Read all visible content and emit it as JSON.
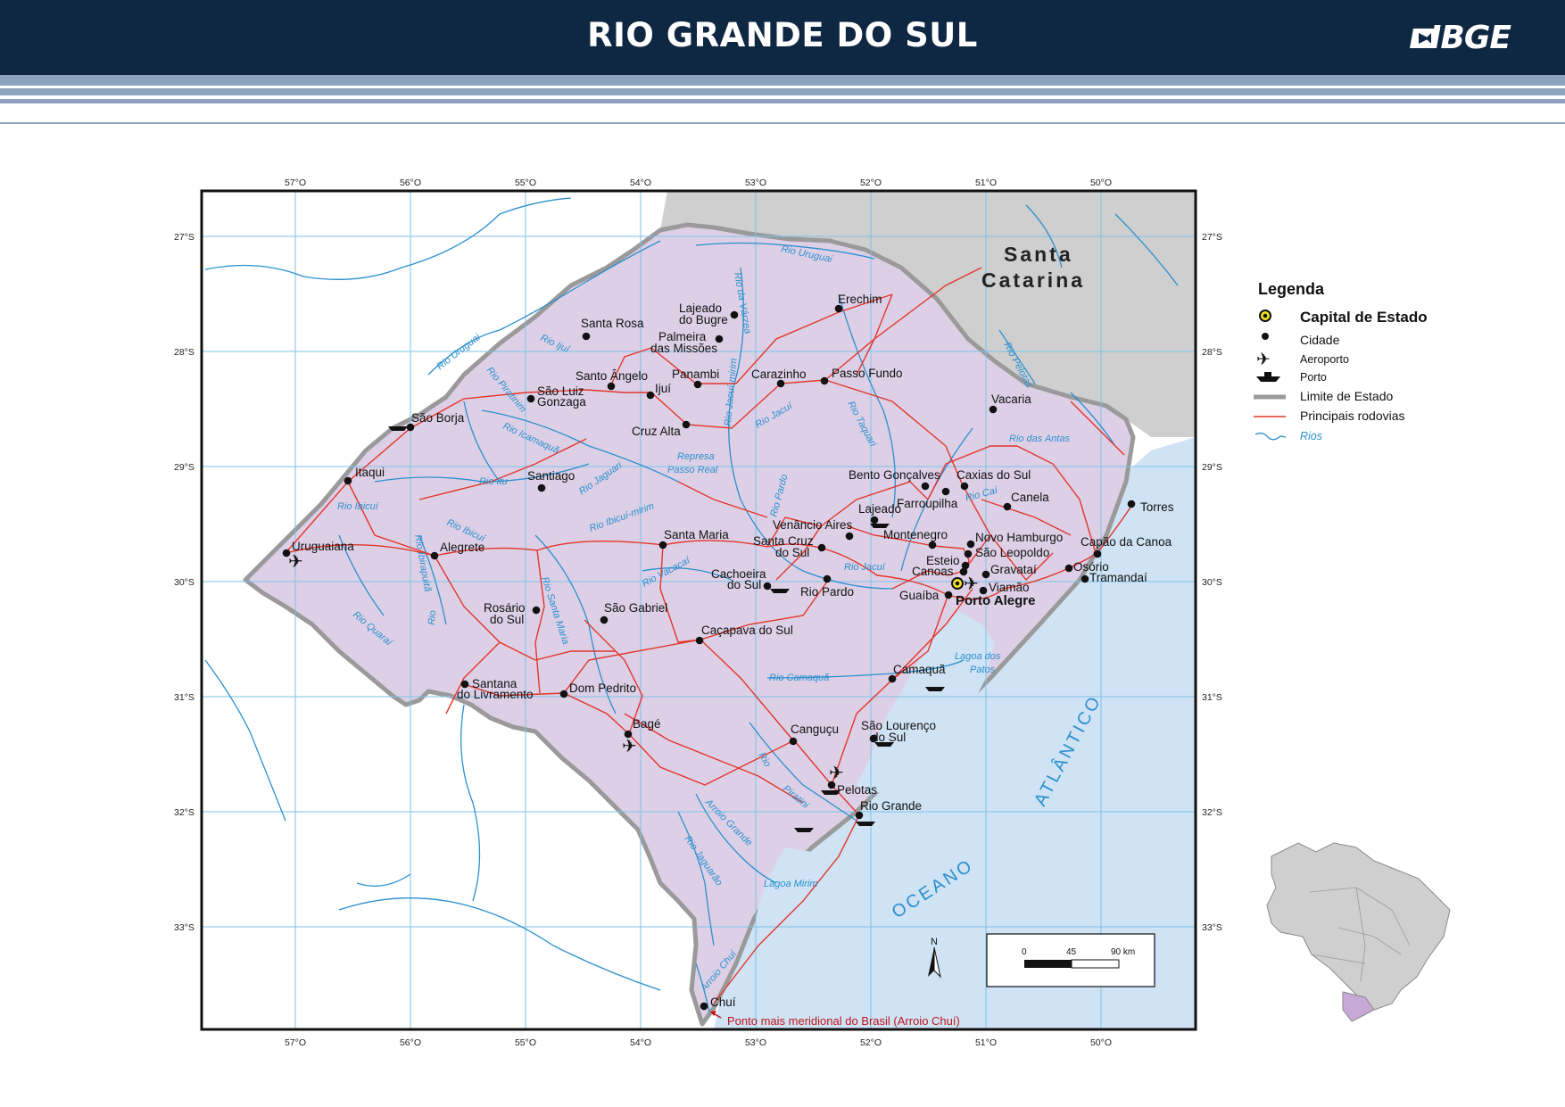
{
  "header": {
    "title": "RIO GRANDE DO SUL",
    "logo": "IBGE"
  },
  "map": {
    "lon_labels": [
      "57°O",
      "56°O",
      "55°O",
      "54°O",
      "53°O",
      "52°O",
      "51°O",
      "50°O"
    ],
    "lat_labels": [
      "27°S",
      "28°S",
      "29°S",
      "30°S",
      "31°S",
      "32°S",
      "33°S"
    ],
    "neighbor_state": [
      "Santa",
      "Catarina"
    ],
    "ocean": [
      "OCEANO",
      "ATLÂNTICO"
    ],
    "capital": "Porto Alegre",
    "cities": [
      "Erechim",
      "Lajeado",
      "do Bugre",
      "Santa Rosa",
      "Palmeira",
      "das Missões",
      "Santo Ângelo",
      "Panambi",
      "Carazinho",
      "Passo Fundo",
      "São Luiz",
      "Gonzaga",
      "Ijuí",
      "São Borja",
      "Cruz Alta",
      "Vacaria",
      "Itaqui",
      "Santiago",
      "Bento Gonçalves",
      "Caxias do Sul",
      "Farroupilha",
      "Canela",
      "Torres",
      "Lajeado",
      "Venâncio Aires",
      "Montenegro",
      "Novo Hamburgo",
      "São Leopoldo",
      "Capão da Canoa",
      "Uruguaiana",
      "Alegrete",
      "Santa Maria",
      "Santa Cruz",
      "do Sul",
      "Esteio",
      "Canoas",
      "Gravataí",
      "Osório",
      "Tramandaí",
      "Cachoeira",
      "do Sul",
      "Rio Pardo",
      "Guaíba",
      "Viamão",
      "Rosário",
      "do Sul",
      "São Gabriel",
      "Caçapava do Sul",
      "Camaquã",
      "Santana",
      "do Livramento",
      "Dom Pedrito",
      "Bagé",
      "Canguçu",
      "São Lourenço",
      "do Sul",
      "Pelotas",
      "Rio Grande",
      "Chuí"
    ],
    "rivers": [
      "Rio Uruguai",
      "Rio Uruguai",
      "Rio Ijuí",
      "Rio Piratinim",
      "Rio Icamaquã",
      "Rio Ibicuí",
      "Rio Itu",
      "Rio Ibicuí",
      "Rio Ibirapuitã",
      "Rio Quaraí",
      "Rio Jaguari",
      "Rio Ibicuí-mirim",
      "Rio Vacacaí",
      "Rio Santa Maria",
      "Rio",
      "Rio da Várzea",
      "Rio Jacuí-mirim",
      "Rio Jacuí",
      "Rio Taquari",
      "Rio Pardo",
      "Rio Pelotas",
      "Rio das Antas",
      "Rio Caí",
      "Rio Jacuí",
      "Rio Camaquã",
      "Rio",
      "Piratini",
      "Arroio Grande",
      "Rio Jaguarão",
      "Arroio Chuí",
      "Represa",
      "Passo Real"
    ],
    "lakes": [
      "Lagoa dos",
      "Patos",
      "Lagoa Mirim"
    ],
    "scale": {
      "ticks": [
        "0",
        "45",
        "90 km"
      ]
    },
    "north": "N",
    "note": "Ponto mais meridional do Brasil (Arroio Chuí)"
  },
  "legend": {
    "title": "Legenda",
    "items": [
      {
        "label": "Capital de Estado",
        "icon": "capital-icon"
      },
      {
        "label": "Cidade",
        "icon": "city-dot-icon"
      },
      {
        "label": "Aeroporto",
        "icon": "airplane-icon"
      },
      {
        "label": "Porto",
        "icon": "ship-icon"
      },
      {
        "label": "Limite de Estado",
        "icon": "state-border-icon"
      },
      {
        "label": "Principais rodovias",
        "icon": "road-icon"
      },
      {
        "label": "Rios",
        "icon": "river-icon"
      }
    ]
  },
  "colors": {
    "header_bg": "#0e2742",
    "state_fill": "#ddd0e6",
    "ocean": "#cfe3f4",
    "neighbor": "#cfcfcf",
    "road": "#e2362b",
    "river": "#2b8fcf",
    "grid": "#7cc2ea",
    "border": "#9a9a9a"
  }
}
